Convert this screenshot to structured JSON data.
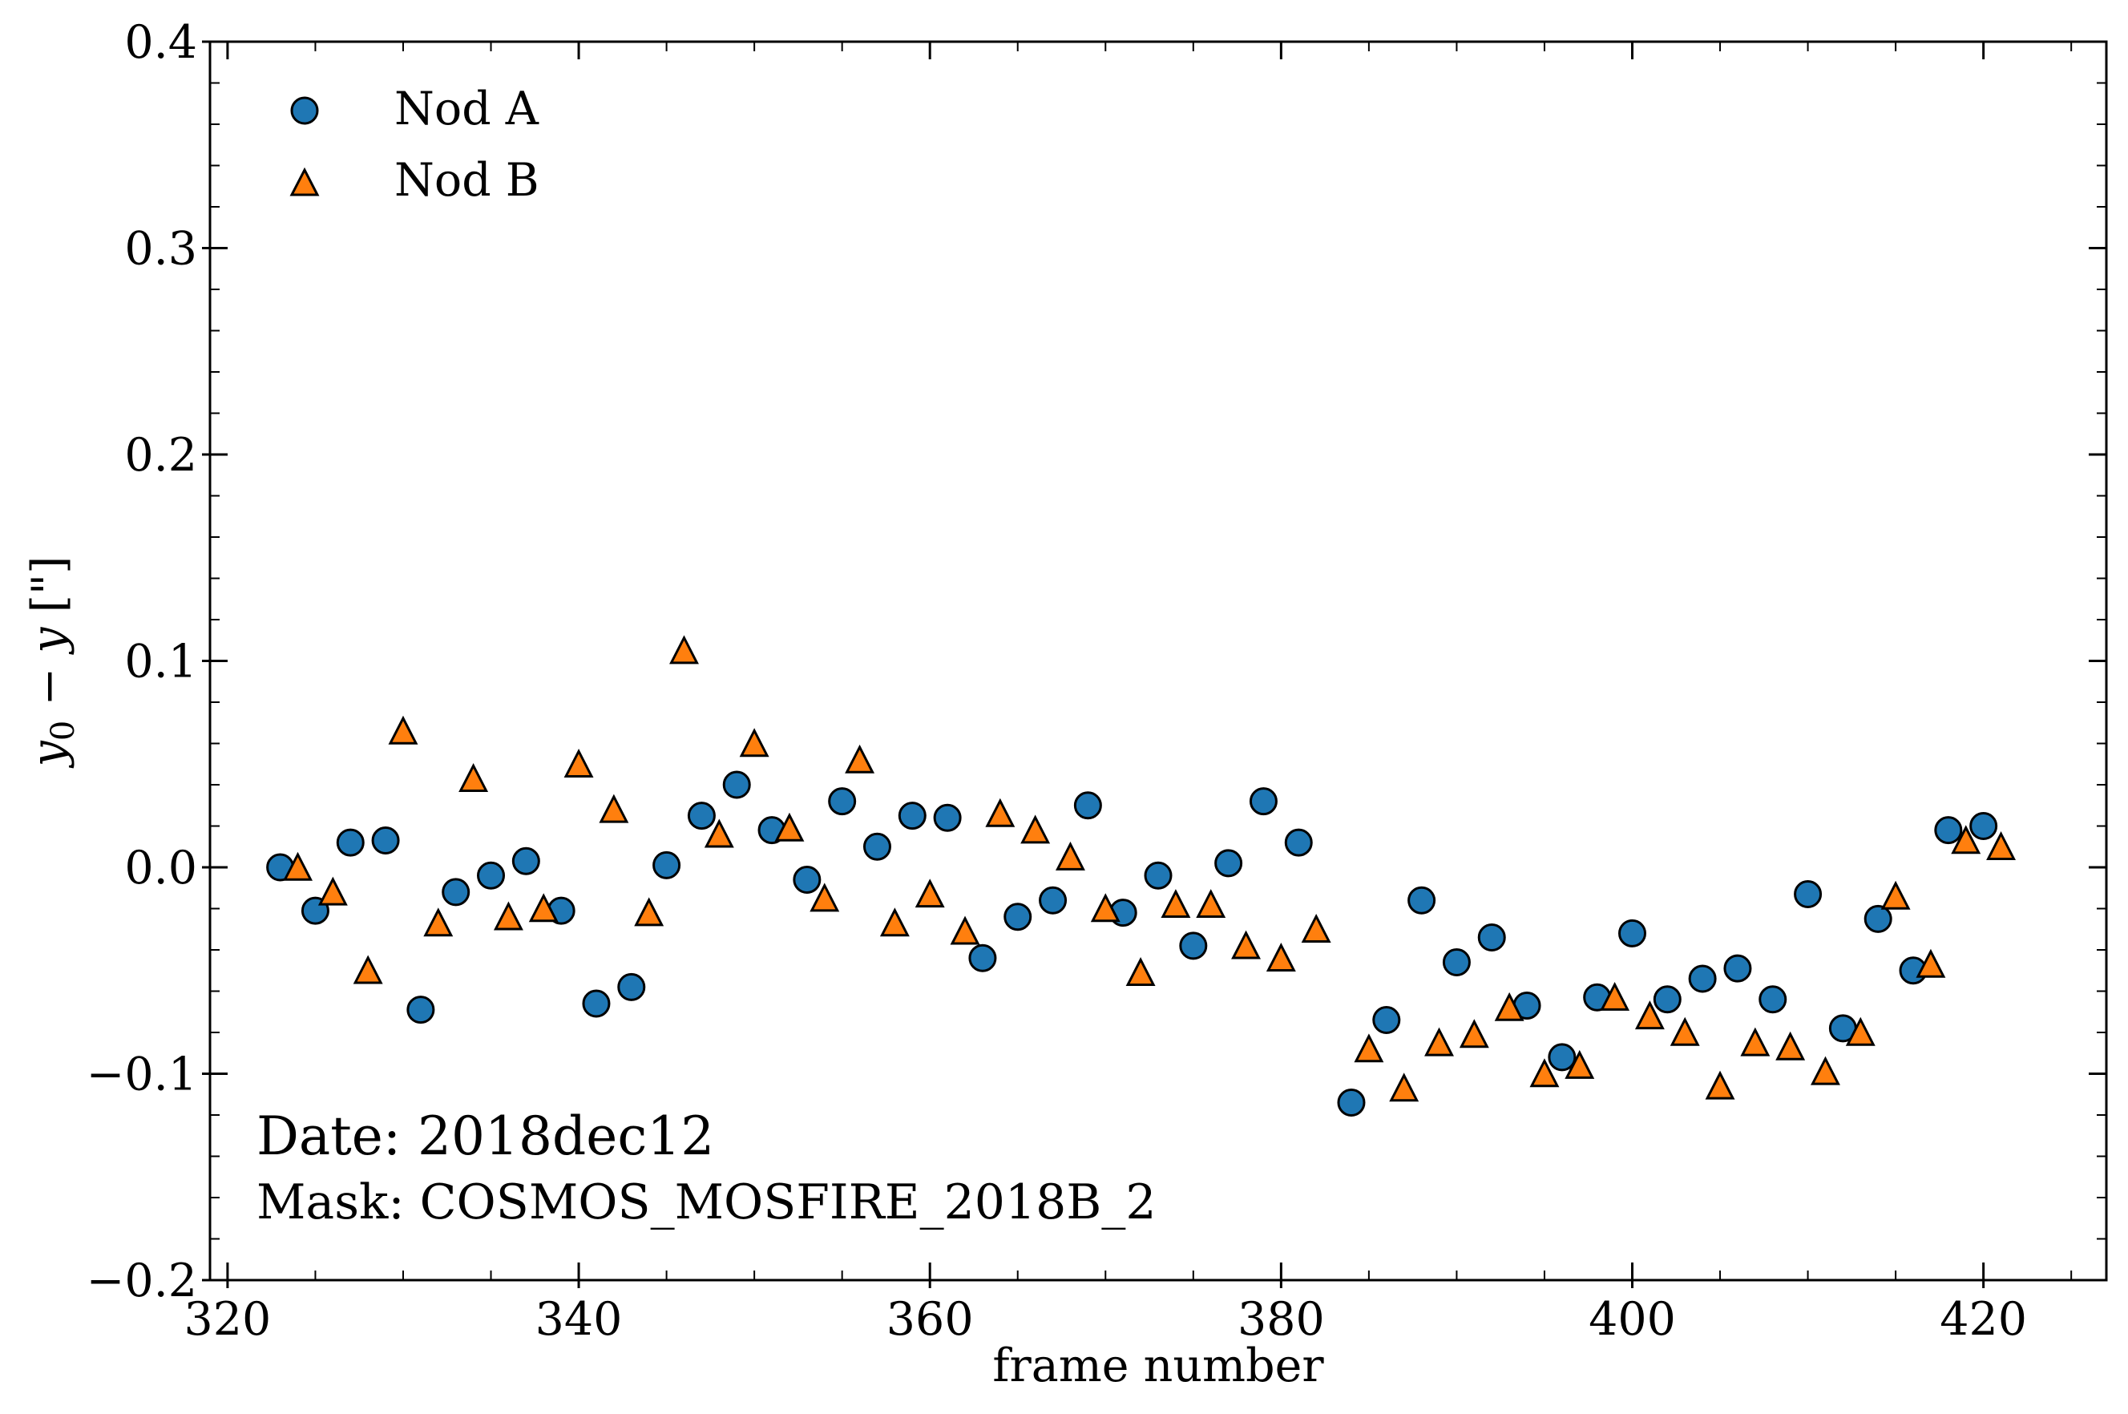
{
  "chart_data": {
    "type": "scatter",
    "xlabel": "frame number",
    "ylabel_parts": [
      "y",
      "0",
      " − ",
      "y",
      " [\"]"
    ],
    "xlim": [
      319,
      427
    ],
    "ylim": [
      -0.2,
      0.4
    ],
    "x_ticks": [
      320,
      340,
      360,
      380,
      400,
      420
    ],
    "y_ticks": [
      -0.2,
      -0.1,
      0.0,
      0.1,
      0.2,
      0.3,
      0.4
    ],
    "x_tick_labels": [
      "320",
      "340",
      "360",
      "380",
      "400",
      "420"
    ],
    "y_tick_labels": [
      "−0.2",
      "−0.1",
      "0.0",
      "0.1",
      "0.2",
      "0.3",
      "0.4"
    ],
    "x_minor_step": 5,
    "y_minor_step": 0.02,
    "grid": false,
    "legend_position": "top-left",
    "annotations": {
      "date": "Date: 2018dec12",
      "mask": "Mask: COSMOS_MOSFIRE_2018B_2"
    },
    "colors": {
      "nod_a": "#1f77b4",
      "nod_b": "#ff7f0e",
      "edge": "#000000"
    },
    "series": [
      {
        "name": "Nod A",
        "marker": "circle",
        "x": [
          323,
          325,
          327,
          329,
          331,
          333,
          335,
          337,
          339,
          341,
          343,
          345,
          347,
          349,
          351,
          353,
          355,
          357,
          359,
          361,
          363,
          365,
          367,
          369,
          371,
          373,
          375,
          377,
          379,
          381,
          384,
          386,
          388,
          390,
          392,
          394,
          396,
          398,
          400,
          402,
          404,
          406,
          408,
          410,
          412,
          414,
          416,
          418,
          420
        ],
        "y": [
          0.0,
          -0.021,
          0.012,
          0.013,
          -0.069,
          -0.012,
          -0.004,
          0.003,
          -0.021,
          -0.066,
          -0.058,
          0.001,
          0.025,
          0.04,
          0.018,
          -0.006,
          0.032,
          0.01,
          0.025,
          0.024,
          -0.044,
          -0.024,
          -0.016,
          0.03,
          -0.022,
          -0.004,
          -0.038,
          0.002,
          0.032,
          0.012,
          -0.114,
          -0.074,
          -0.016,
          -0.046,
          -0.034,
          -0.067,
          -0.092,
          -0.063,
          -0.032,
          -0.064,
          -0.054,
          -0.049,
          -0.064,
          -0.013,
          -0.078,
          -0.025,
          -0.05,
          0.018,
          0.02
        ]
      },
      {
        "name": "Nod B",
        "marker": "triangle",
        "x": [
          324,
          326,
          328,
          330,
          332,
          334,
          336,
          338,
          340,
          342,
          344,
          346,
          348,
          350,
          352,
          354,
          356,
          358,
          360,
          362,
          364,
          366,
          368,
          370,
          372,
          374,
          376,
          378,
          380,
          382,
          385,
          387,
          389,
          391,
          393,
          395,
          397,
          399,
          401,
          403,
          405,
          407,
          409,
          411,
          413,
          415,
          417,
          419,
          421
        ],
        "y": [
          0.0,
          -0.012,
          -0.05,
          0.066,
          -0.027,
          0.043,
          -0.024,
          -0.02,
          0.05,
          0.028,
          -0.022,
          0.105,
          0.016,
          0.06,
          0.019,
          -0.015,
          0.052,
          -0.027,
          -0.013,
          -0.031,
          0.026,
          0.018,
          0.005,
          -0.02,
          -0.051,
          -0.018,
          -0.018,
          -0.038,
          -0.044,
          -0.03,
          -0.088,
          -0.107,
          -0.085,
          -0.081,
          -0.068,
          -0.1,
          -0.096,
          -0.063,
          -0.072,
          -0.08,
          -0.106,
          -0.085,
          -0.087,
          -0.099,
          -0.08,
          -0.014,
          -0.047,
          0.013,
          0.01
        ]
      }
    ]
  }
}
